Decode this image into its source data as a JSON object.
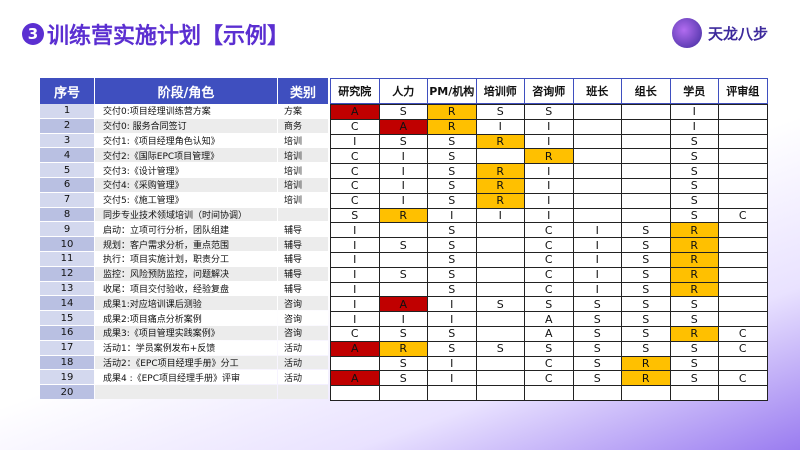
{
  "title": {
    "number": "3",
    "text": "训练营实施计划【示例】"
  },
  "logo": {
    "text": "天龙八步"
  },
  "table": {
    "headers": [
      "序号",
      "阶段/角色",
      "类别"
    ],
    "roles": [
      "研究院",
      "人力",
      "PM/机构",
      "培训师",
      "咨询师",
      "班长",
      "组长",
      "学员",
      "评审组"
    ],
    "rows": [
      {
        "no": "1",
        "task": "交付0:项目经理训练营方案",
        "category": "方案",
        "cells": [
          "A",
          "S",
          "R",
          "S",
          "S",
          null,
          null,
          "I",
          null
        ],
        "fills": [
          "#c00000",
          null,
          "#ffc000",
          null,
          null,
          null,
          null,
          null,
          null
        ]
      },
      {
        "no": "2",
        "task": "交付0: 服务合同签订",
        "category": "商务",
        "cells": [
          "C",
          "A",
          "R",
          "I",
          "I",
          null,
          null,
          "I",
          null
        ],
        "fills": [
          null,
          "#c00000",
          "#ffc000",
          null,
          null,
          null,
          null,
          null,
          null
        ]
      },
      {
        "no": "3",
        "task": "交付1:《项目经理角色认知》",
        "category": "培训",
        "cells": [
          "I",
          "S",
          "S",
          "R",
          "I",
          null,
          null,
          "S",
          null
        ],
        "fills": [
          null,
          null,
          null,
          "#ffc000",
          null,
          null,
          null,
          null,
          null
        ]
      },
      {
        "no": "4",
        "task": "交付2:《国际EPC项目管理》",
        "category": "培训",
        "cells": [
          "C",
          "I",
          "S",
          null,
          "R",
          null,
          null,
          "S",
          null
        ],
        "fills": [
          null,
          null,
          null,
          null,
          "#ffc000",
          null,
          null,
          null,
          null
        ]
      },
      {
        "no": "5",
        "task": "交付3:《设计管理》",
        "category": "培训",
        "cells": [
          "C",
          "I",
          "S",
          "R",
          "I",
          null,
          null,
          "S",
          null
        ],
        "fills": [
          null,
          null,
          null,
          "#ffc000",
          null,
          null,
          null,
          null,
          null
        ]
      },
      {
        "no": "6",
        "task": "交付4:《采购管理》",
        "category": "培训",
        "cells": [
          "C",
          "I",
          "S",
          "R",
          "I",
          null,
          null,
          "S",
          null
        ],
        "fills": [
          null,
          null,
          null,
          "#ffc000",
          null,
          null,
          null,
          null,
          null
        ]
      },
      {
        "no": "7",
        "task": "交付5:《施工管理》",
        "category": "培训",
        "cells": [
          "C",
          "I",
          "S",
          "R",
          "I",
          null,
          null,
          "S",
          null
        ],
        "fills": [
          null,
          null,
          null,
          "#ffc000",
          null,
          null,
          null,
          null,
          null
        ]
      },
      {
        "no": "8",
        "task": "同步专业技术领域培训（时间协调）",
        "category": null,
        "cells": [
          "S",
          "R",
          "I",
          "I",
          "I",
          null,
          null,
          "S",
          "C"
        ],
        "fills": [
          null,
          "#ffc000",
          null,
          null,
          null,
          null,
          null,
          null,
          null
        ]
      },
      {
        "no": "9",
        "task": "启动：立项可行分析，团队组建",
        "category": "辅导",
        "cells": [
          "I",
          null,
          "S",
          null,
          "C",
          "I",
          "S",
          "R",
          null
        ],
        "fills": [
          null,
          null,
          null,
          null,
          null,
          null,
          null,
          "#ffc000",
          null
        ]
      },
      {
        "no": "10",
        "task": "规划：客户需求分析，重点范围",
        "category": "辅导",
        "cells": [
          "I",
          "S",
          "S",
          null,
          "C",
          "I",
          "S",
          "R",
          null
        ],
        "fills": [
          null,
          null,
          null,
          null,
          null,
          null,
          null,
          "#ffc000",
          null
        ]
      },
      {
        "no": "11",
        "task": "执行：项目实施计划，职责分工",
        "category": "辅导",
        "cells": [
          "I",
          null,
          "S",
          null,
          "C",
          "I",
          "S",
          "R",
          null
        ],
        "fills": [
          null,
          null,
          null,
          null,
          null,
          null,
          null,
          "#ffc000",
          null
        ]
      },
      {
        "no": "12",
        "task": "监控：风险预防监控，问题解决",
        "category": "辅导",
        "cells": [
          "I",
          "S",
          "S",
          null,
          "C",
          "I",
          "S",
          "R",
          null
        ],
        "fills": [
          null,
          null,
          null,
          null,
          null,
          null,
          null,
          "#ffc000",
          null
        ]
      },
      {
        "no": "13",
        "task": "收尾：项目交付验收，经验复盘",
        "category": "辅导",
        "cells": [
          "I",
          null,
          "S",
          null,
          "C",
          "I",
          "S",
          "R",
          null
        ],
        "fills": [
          null,
          null,
          null,
          null,
          null,
          null,
          null,
          "#ffc000",
          null
        ]
      },
      {
        "no": "14",
        "task": "成果1:对应培训课后测验",
        "category": "咨询",
        "cells": [
          "I",
          "A",
          "I",
          "S",
          "S",
          "S",
          "S",
          "S",
          null
        ],
        "fills": [
          null,
          "#c00000",
          null,
          null,
          null,
          null,
          null,
          null,
          null
        ]
      },
      {
        "no": "15",
        "task": "成果2:项目痛点分析案例",
        "category": "咨询",
        "cells": [
          "I",
          "I",
          "I",
          null,
          "A",
          "S",
          "S",
          "S",
          null
        ],
        "fills": [
          null,
          null,
          null,
          null,
          null,
          null,
          null,
          null,
          null
        ]
      },
      {
        "no": "16",
        "task": "成果3:《项目管理实践案例》",
        "category": "咨询",
        "cells": [
          "C",
          "S",
          "S",
          null,
          "A",
          "S",
          "S",
          "R",
          "C"
        ],
        "fills": [
          null,
          null,
          null,
          null,
          null,
          null,
          null,
          "#ffc000",
          null
        ]
      },
      {
        "no": "17",
        "task": "活动1：学员案例发布+反馈",
        "category": "活动",
        "cells": [
          "A",
          "R",
          "S",
          "S",
          "S",
          "S",
          "S",
          "S",
          "C"
        ],
        "fills": [
          "#c00000",
          "#ffc000",
          null,
          null,
          null,
          null,
          null,
          null,
          null
        ]
      },
      {
        "no": "18",
        "task": "活动2：《EPC项目经理手册》分工",
        "category": "活动",
        "cells": [
          null,
          "S",
          "I",
          null,
          "C",
          "S",
          "R",
          "S",
          null
        ],
        "fills": [
          null,
          null,
          null,
          null,
          null,
          null,
          "#ffc000",
          null,
          null
        ]
      },
      {
        "no": "19",
        "task": "成果4 :《EPC项目经理手册》评审",
        "category": "活动",
        "cells": [
          "A",
          "S",
          "I",
          null,
          "C",
          "S",
          "R",
          "S",
          "C"
        ],
        "fills": [
          "#c00000",
          null,
          null,
          null,
          null,
          null,
          "#ffc000",
          null,
          null
        ]
      },
      {
        "no": "20",
        "task": null,
        "category": null,
        "cells": [
          null,
          null,
          null,
          null,
          null,
          null,
          null,
          null,
          null
        ],
        "fills": [
          null,
          null,
          null,
          null,
          null,
          null,
          null,
          null,
          null
        ]
      }
    ]
  }
}
